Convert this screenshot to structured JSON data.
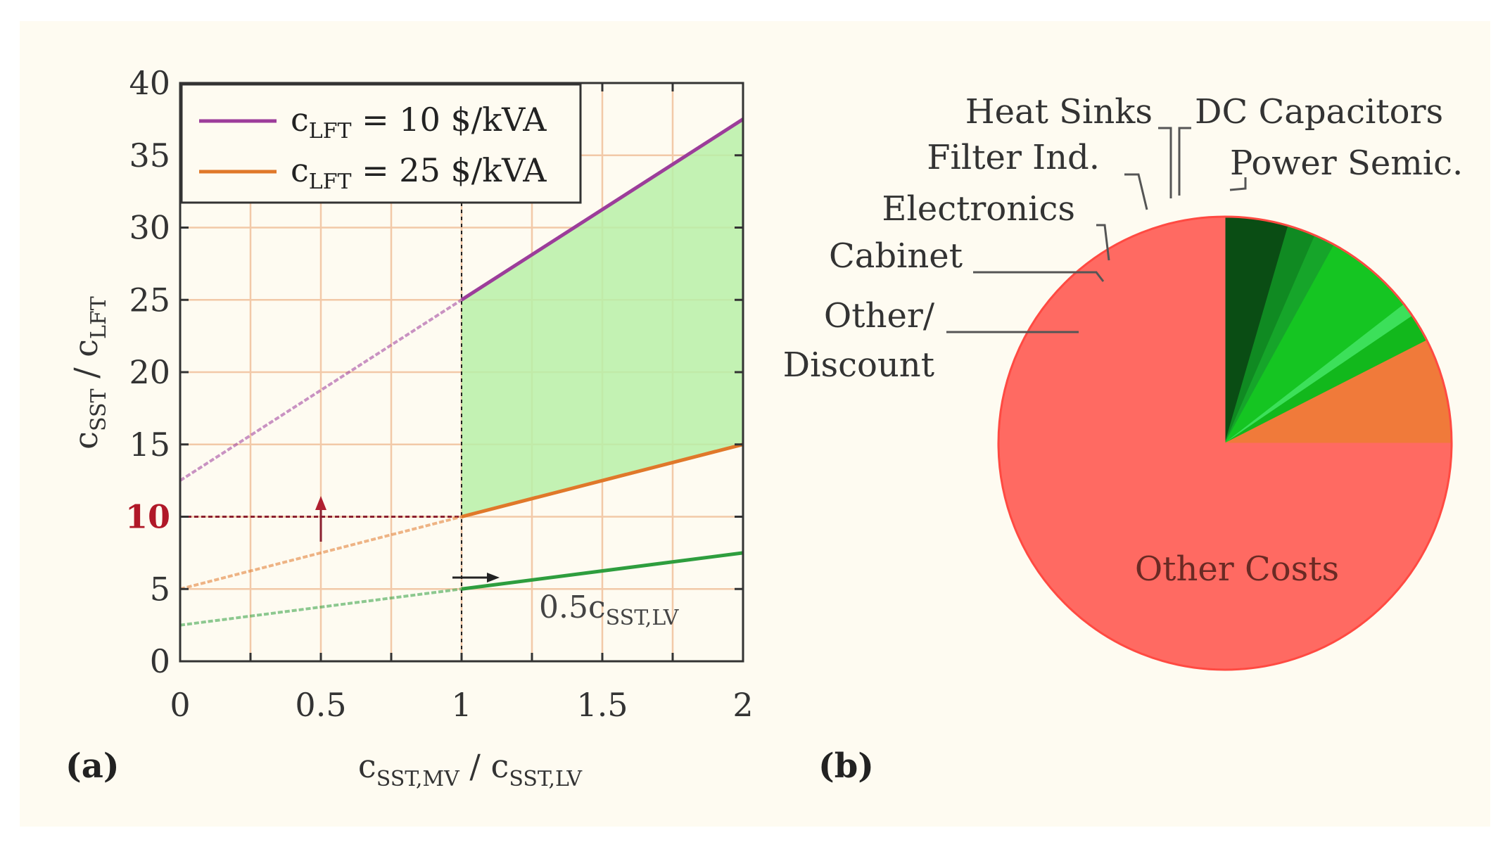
{
  "chart_data": [
    {
      "type": "line",
      "panel_label": "(a)",
      "title": "",
      "xlabel": "c_SST,MV / c_SST,LV",
      "ylabel": "c_SST / c_LFT",
      "xlim": [
        0,
        2
      ],
      "ylim": [
        0,
        40
      ],
      "grid": true,
      "x_ticks": [
        "0",
        "0.5",
        "1",
        "1.5",
        "2"
      ],
      "y_ticks": [
        "0",
        "5",
        "10",
        "15",
        "20",
        "25",
        "30",
        "35",
        "40"
      ],
      "highlight_tick": "10",
      "legend_position": "top-left",
      "series": [
        {
          "name": "c_LFT = 10 $/kVA",
          "color": "#9c3d9a",
          "x": [
            0,
            2
          ],
          "y": [
            12.5,
            37.5
          ]
        },
        {
          "name": "c_LFT = 25 $/kVA",
          "color": "#e0782a",
          "x": [
            0,
            2
          ],
          "y": [
            5,
            15
          ]
        },
        {
          "name": "0.5 c_SST,LV",
          "color": "#2e9e3e",
          "x": [
            0,
            2
          ],
          "y": [
            2.5,
            7.5
          ]
        }
      ],
      "legend": [
        {
          "sym": "c",
          "sub": "LFT",
          "rest": " = 10 $/kVA",
          "color": "#9c3d9a"
        },
        {
          "sym": "c",
          "sub": "LFT",
          "rest": " = 25 $/kVA",
          "color": "#e0782a"
        }
      ],
      "threshold": {
        "y": 10,
        "x_marker": 1
      },
      "shaded_region": {
        "x_from": 1,
        "x_to": 2,
        "color": "#b8f0a8"
      },
      "annotation": {
        "prefix": "0.5c",
        "sub": "SST,LV"
      },
      "axis_text": {
        "x_sym": "c",
        "x_sub": "SST,MV",
        "x_sep": " / ",
        "x_sym2": "c",
        "x_sub2": "SST,LV",
        "y_sym": "c",
        "y_sub": "SST",
        "y_sep": " / ",
        "y_sym2": "c",
        "y_sub2": "LFT"
      }
    },
    {
      "type": "pie",
      "panel_label": "(b)",
      "title": "",
      "slices": [
        {
          "label": "Power Semic.",
          "value": 4.5,
          "color": "#0a4d14"
        },
        {
          "label": "DC Capacitors",
          "value": 2.0,
          "color": "#108a22"
        },
        {
          "label": "Heat Sinks",
          "value": 1.5,
          "color": "#16a52a"
        },
        {
          "label": "Filter Ind.",
          "value": 6.5,
          "color": "#15c522"
        },
        {
          "label": "Electronics",
          "value": 1.0,
          "color": "#3ce05a"
        },
        {
          "label": "Cabinet",
          "value": 2.0,
          "color": "#12b81c"
        },
        {
          "label": "Other/ Discount",
          "value": 7.5,
          "color": "#f07a3a"
        },
        {
          "label": "Other Costs",
          "value": 75.0,
          "color": "#ff6a62"
        }
      ]
    }
  ]
}
